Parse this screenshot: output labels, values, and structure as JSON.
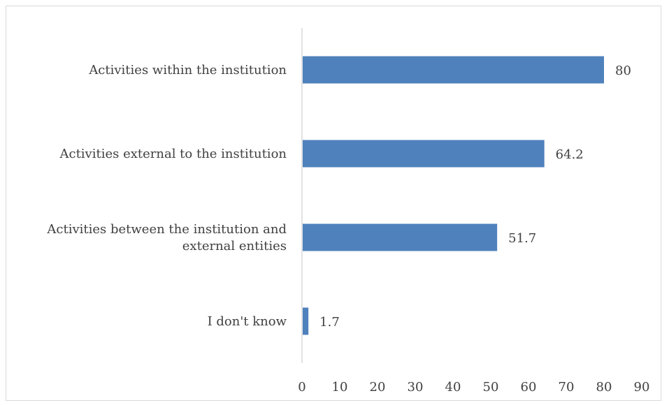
{
  "chart_data": {
    "type": "bar",
    "orientation": "horizontal",
    "categories": [
      [
        "Activities within the institution"
      ],
      [
        "Activities external to the institution"
      ],
      [
        "Activities between the institution and",
        "external entities"
      ],
      [
        "I don't know"
      ]
    ],
    "values": [
      80,
      64.2,
      51.7,
      1.7
    ],
    "value_labels": [
      "80",
      "64.2",
      "51.7",
      "1.7"
    ],
    "xlim": [
      0,
      90
    ],
    "xticks": [
      0,
      10,
      20,
      30,
      40,
      50,
      60,
      70,
      80,
      90
    ],
    "title": "",
    "xlabel": "",
    "ylabel": "",
    "grid": false,
    "legend": "none",
    "bar_color": "#4f81bd",
    "axis_color": "#d9d9d9",
    "text_color": "#404040"
  }
}
